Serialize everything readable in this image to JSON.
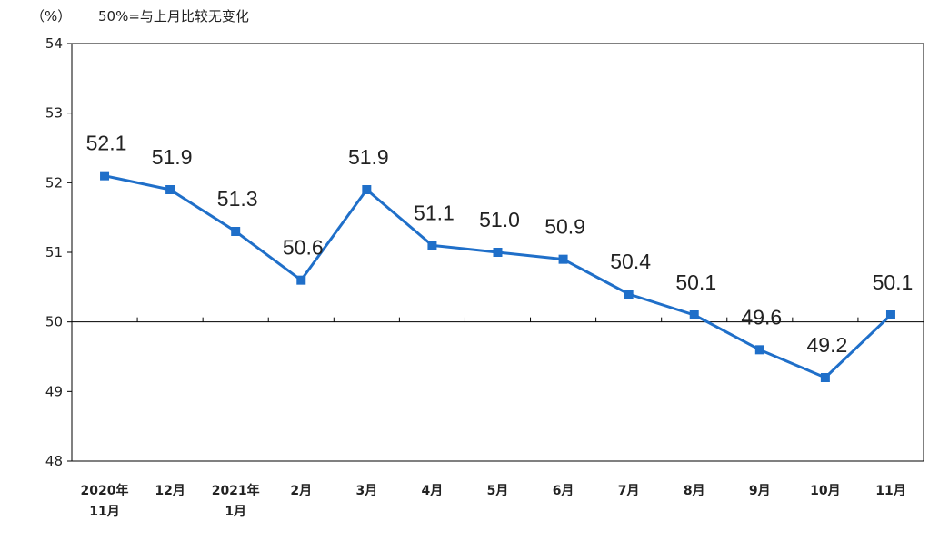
{
  "header": {
    "unit": "（%）",
    "note": "50%=与上月比较无变化"
  },
  "chart_data": {
    "type": "line",
    "categories": [
      [
        "2020年",
        "11月"
      ],
      [
        "12月"
      ],
      [
        "2021年",
        "1月"
      ],
      [
        "2月"
      ],
      [
        "3月"
      ],
      [
        "4月"
      ],
      [
        "5月"
      ],
      [
        "6月"
      ],
      [
        "7月"
      ],
      [
        "8月"
      ],
      [
        "9月"
      ],
      [
        "10月"
      ],
      [
        "11月"
      ]
    ],
    "values": [
      52.1,
      51.9,
      51.3,
      50.6,
      51.9,
      51.1,
      51.0,
      50.9,
      50.4,
      50.1,
      49.6,
      49.2,
      50.1
    ],
    "data_labels": [
      "52.1",
      "51.9",
      "51.3",
      "50.6",
      "51.9",
      "51.1",
      "51.0",
      "50.9",
      "50.4",
      "50.1",
      "49.6",
      "49.2",
      "50.1"
    ],
    "yticks": [
      48,
      49,
      50,
      51,
      52,
      53,
      54
    ],
    "ylim": [
      48,
      54
    ],
    "reference_line": 50,
    "grid": false,
    "line_color": "#1f6fc9",
    "axis_color": "#000000"
  }
}
